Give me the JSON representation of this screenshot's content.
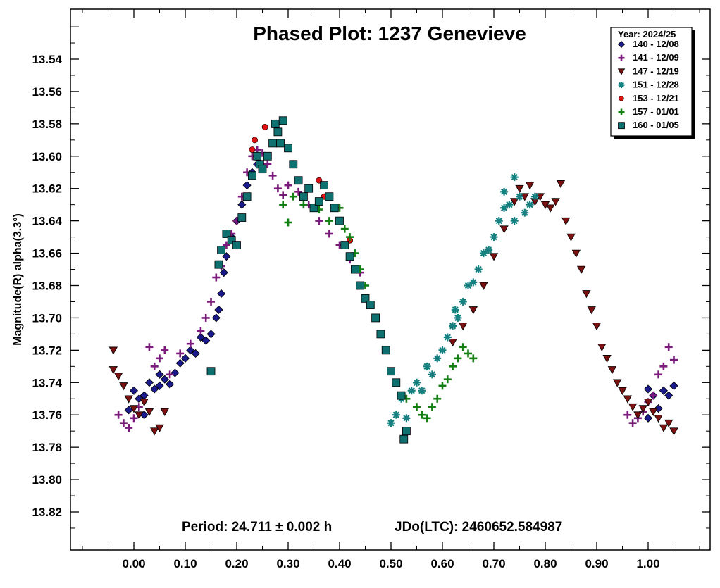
{
  "chart_data": {
    "type": "scatter",
    "title": "Phased Plot: 1237 Genevieve",
    "xlabel": "",
    "ylabel": "Magnitude(R) alpha(3.3°)",
    "xlim": [
      -0.12,
      1.12
    ],
    "ylim": [
      13.84,
      13.52
    ],
    "y_inverted": true,
    "grid": false,
    "legend_position": "top-right",
    "x_ticks": [
      0.0,
      0.1,
      0.2,
      0.3,
      0.4,
      0.5,
      0.6,
      0.7,
      0.8,
      0.9,
      1.0
    ],
    "x_tick_labels": [
      "0.00",
      "0.10",
      "0.20",
      "0.30",
      "0.40",
      "0.50",
      "0.60",
      "0.70",
      "0.80",
      "0.90",
      "1.00"
    ],
    "y_ticks": [
      13.54,
      13.56,
      13.58,
      13.6,
      13.62,
      13.64,
      13.66,
      13.68,
      13.7,
      13.72,
      13.74,
      13.76,
      13.78,
      13.8,
      13.82
    ],
    "y_tick_labels": [
      "13.54",
      "13.56",
      "13.58",
      "13.60",
      "13.62",
      "13.64",
      "13.66",
      "13.68",
      "13.70",
      "13.72",
      "13.74",
      "13.76",
      "13.78",
      "13.80",
      "13.82"
    ],
    "legend_title": "Year: 2024/25",
    "annotations": {
      "period": "Period: 24.711 ± 0.002 h",
      "epoch": "JDo(LTC): 2460652.584987"
    },
    "series": [
      {
        "name": "140 - 12/08",
        "marker": "diamond",
        "color": "#1a1a8c",
        "points": [
          [
            -0.01,
            13.757
          ],
          [
            0.0,
            13.745
          ],
          [
            0.01,
            13.75
          ],
          [
            0.02,
            13.76
          ],
          [
            0.02,
            13.748
          ],
          [
            0.03,
            13.74
          ],
          [
            0.04,
            13.744
          ],
          [
            0.05,
            13.735
          ],
          [
            0.05,
            13.742
          ],
          [
            0.06,
            13.738
          ],
          [
            0.07,
            13.741
          ],
          [
            0.08,
            13.734
          ],
          [
            0.09,
            13.728
          ],
          [
            0.1,
            13.725
          ],
          [
            0.11,
            13.72
          ],
          [
            0.12,
            13.722
          ],
          [
            0.13,
            13.712
          ],
          [
            0.14,
            13.714
          ],
          [
            0.15,
            13.71
          ],
          [
            0.16,
            13.7
          ],
          [
            0.165,
            13.695
          ],
          [
            0.17,
            13.685
          ],
          [
            0.175,
            13.672
          ],
          [
            0.18,
            13.662
          ],
          [
            0.19,
            13.65
          ],
          [
            0.2,
            13.64
          ],
          [
            0.21,
            13.63
          ],
          [
            0.22,
            13.618
          ],
          [
            0.23,
            13.61
          ],
          [
            0.24,
            13.605
          ],
          [
            1.0,
            13.744
          ],
          [
            1.01,
            13.748
          ],
          [
            1.02,
            13.756
          ],
          [
            1.03,
            13.745
          ],
          [
            1.04,
            13.748
          ],
          [
            1.05,
            13.742
          ],
          [
            1.0,
            13.762
          ]
        ]
      },
      {
        "name": "141 - 12/09",
        "marker": "plus",
        "color": "#7a1a7a",
        "points": [
          [
            -0.03,
            13.76
          ],
          [
            -0.02,
            13.765
          ],
          [
            -0.01,
            13.768
          ],
          [
            0.0,
            13.762
          ],
          [
            0.01,
            13.755
          ],
          [
            0.03,
            13.718
          ],
          [
            0.04,
            13.73
          ],
          [
            0.05,
            13.725
          ],
          [
            0.06,
            13.72
          ],
          [
            0.07,
            13.735
          ],
          [
            0.09,
            13.722
          ],
          [
            0.11,
            13.716
          ],
          [
            0.13,
            13.708
          ],
          [
            0.14,
            13.7
          ],
          [
            0.15,
            13.69
          ],
          [
            0.16,
            13.675
          ],
          [
            0.17,
            13.668
          ],
          [
            0.18,
            13.655
          ],
          [
            0.19,
            13.648
          ],
          [
            0.2,
            13.64
          ],
          [
            0.21,
            13.625
          ],
          [
            0.22,
            13.61
          ],
          [
            0.23,
            13.6
          ],
          [
            0.24,
            13.596
          ],
          [
            0.25,
            13.598
          ],
          [
            0.26,
            13.605
          ],
          [
            0.27,
            13.612
          ],
          [
            0.28,
            13.62
          ],
          [
            0.29,
            13.624
          ],
          [
            0.3,
            13.618
          ],
          [
            0.32,
            13.622
          ],
          [
            0.34,
            13.63
          ],
          [
            0.36,
            13.64
          ],
          [
            0.38,
            13.648
          ],
          [
            0.4,
            13.655
          ],
          [
            0.42,
            13.664
          ],
          [
            0.44,
            13.672
          ],
          [
            0.96,
            13.76
          ],
          [
            0.97,
            13.765
          ],
          [
            0.98,
            13.762
          ],
          [
            0.99,
            13.758
          ],
          [
            1.0,
            13.752
          ],
          [
            1.01,
            13.748
          ],
          [
            1.02,
            13.735
          ],
          [
            1.03,
            13.73
          ],
          [
            1.04,
            13.718
          ],
          [
            1.05,
            13.726
          ]
        ]
      },
      {
        "name": "147 - 12/19",
        "marker": "triangle-down",
        "color": "#7a1010",
        "points": [
          [
            -0.04,
            13.72
          ],
          [
            -0.04,
            13.732
          ],
          [
            -0.03,
            13.736
          ],
          [
            -0.02,
            13.742
          ],
          [
            -0.01,
            13.75
          ],
          [
            0.0,
            13.756
          ],
          [
            0.01,
            13.76
          ],
          [
            0.02,
            13.752
          ],
          [
            0.03,
            13.758
          ],
          [
            0.04,
            13.77
          ],
          [
            0.05,
            13.768
          ],
          [
            0.06,
            13.758
          ],
          [
            0.62,
            13.715
          ],
          [
            0.64,
            13.705
          ],
          [
            0.66,
            13.695
          ],
          [
            0.68,
            13.68
          ],
          [
            0.7,
            13.662
          ],
          [
            0.72,
            13.645
          ],
          [
            0.74,
            13.628
          ],
          [
            0.75,
            13.62
          ],
          [
            0.76,
            13.625
          ],
          [
            0.77,
            13.618
          ],
          [
            0.78,
            13.628
          ],
          [
            0.79,
            13.625
          ],
          [
            0.8,
            13.63
          ],
          [
            0.81,
            13.632
          ],
          [
            0.82,
            13.628
          ],
          [
            0.83,
            13.617
          ],
          [
            0.84,
            13.64
          ],
          [
            0.85,
            13.65
          ],
          [
            0.86,
            13.66
          ],
          [
            0.87,
            13.67
          ],
          [
            0.88,
            13.685
          ],
          [
            0.89,
            13.695
          ],
          [
            0.9,
            13.705
          ],
          [
            0.91,
            13.718
          ],
          [
            0.92,
            13.725
          ],
          [
            0.93,
            13.732
          ],
          [
            0.94,
            13.74
          ],
          [
            0.95,
            13.745
          ],
          [
            0.96,
            13.75
          ],
          [
            0.97,
            13.755
          ],
          [
            0.98,
            13.76
          ],
          [
            0.99,
            13.756
          ],
          [
            1.0,
            13.752
          ],
          [
            1.01,
            13.758
          ],
          [
            1.02,
            13.762
          ],
          [
            1.03,
            13.768
          ],
          [
            1.04,
            13.765
          ],
          [
            1.05,
            13.77
          ]
        ]
      },
      {
        "name": "151 - 12/28",
        "marker": "asterisk",
        "color": "#158080",
        "points": [
          [
            0.5,
            13.765
          ],
          [
            0.51,
            13.76
          ],
          [
            0.52,
            13.75
          ],
          [
            0.53,
            13.762
          ],
          [
            0.54,
            13.745
          ],
          [
            0.55,
            13.74
          ],
          [
            0.56,
            13.745
          ],
          [
            0.57,
            13.73
          ],
          [
            0.58,
            13.735
          ],
          [
            0.59,
            13.725
          ],
          [
            0.6,
            13.72
          ],
          [
            0.61,
            13.712
          ],
          [
            0.62,
            13.705
          ],
          [
            0.625,
            13.695
          ],
          [
            0.63,
            13.7
          ],
          [
            0.64,
            13.69
          ],
          [
            0.65,
            13.68
          ],
          [
            0.66,
            13.678
          ],
          [
            0.67,
            13.67
          ],
          [
            0.68,
            13.66
          ],
          [
            0.69,
            13.658
          ],
          [
            0.7,
            13.65
          ],
          [
            0.71,
            13.64
          ],
          [
            0.72,
            13.632
          ],
          [
            0.72,
            13.622
          ],
          [
            0.73,
            13.63
          ],
          [
            0.74,
            13.64
          ],
          [
            0.74,
            13.613
          ],
          [
            0.75,
            13.625
          ],
          [
            0.76,
            13.635
          ],
          [
            0.77,
            13.63
          ],
          [
            0.78,
            13.625
          ]
        ]
      },
      {
        "name": "153 - 12/21",
        "marker": "circle",
        "color": "#dd1111",
        "points": [
          [
            0.23,
            13.596
          ],
          [
            0.235,
            13.59
          ],
          [
            0.255,
            13.582
          ],
          [
            0.36,
            13.615
          ],
          [
            0.37,
            13.625
          ],
          [
            0.42,
            13.652
          ]
        ]
      },
      {
        "name": "157 - 01/01",
        "marker": "plus",
        "color": "#128012",
        "points": [
          [
            0.29,
            13.63
          ],
          [
            0.3,
            13.641
          ],
          [
            0.31,
            13.625
          ],
          [
            0.33,
            13.63
          ],
          [
            0.36,
            13.633
          ],
          [
            0.38,
            13.64
          ],
          [
            0.4,
            13.632
          ],
          [
            0.41,
            13.645
          ],
          [
            0.42,
            13.65
          ],
          [
            0.43,
            13.66
          ],
          [
            0.44,
            13.67
          ],
          [
            0.45,
            13.68
          ],
          [
            0.53,
            13.75
          ],
          [
            0.55,
            13.755
          ],
          [
            0.56,
            13.76
          ],
          [
            0.57,
            13.762
          ],
          [
            0.58,
            13.755
          ],
          [
            0.59,
            13.75
          ],
          [
            0.6,
            13.742
          ],
          [
            0.61,
            13.738
          ],
          [
            0.62,
            13.73
          ],
          [
            0.63,
            13.725
          ],
          [
            0.64,
            13.718
          ],
          [
            0.65,
            13.722
          ],
          [
            0.66,
            13.725
          ]
        ]
      },
      {
        "name": "160 - 01/05",
        "marker": "square",
        "color": "#0f7070",
        "points": [
          [
            0.15,
            13.733
          ],
          [
            0.165,
            13.667
          ],
          [
            0.17,
            13.658
          ],
          [
            0.18,
            13.648
          ],
          [
            0.19,
            13.652
          ],
          [
            0.2,
            13.655
          ],
          [
            0.21,
            13.638
          ],
          [
            0.22,
            13.625
          ],
          [
            0.23,
            13.612
          ],
          [
            0.24,
            13.6
          ],
          [
            0.245,
            13.605
          ],
          [
            0.25,
            13.608
          ],
          [
            0.26,
            13.6
          ],
          [
            0.27,
            13.592
          ],
          [
            0.275,
            13.58
          ],
          [
            0.28,
            13.585
          ],
          [
            0.285,
            13.592
          ],
          [
            0.29,
            13.578
          ],
          [
            0.3,
            13.595
          ],
          [
            0.31,
            13.605
          ],
          [
            0.32,
            13.615
          ],
          [
            0.33,
            13.625
          ],
          [
            0.34,
            13.62
          ],
          [
            0.35,
            13.632
          ],
          [
            0.36,
            13.628
          ],
          [
            0.37,
            13.618
          ],
          [
            0.38,
            13.625
          ],
          [
            0.39,
            13.632
          ],
          [
            0.4,
            13.64
          ],
          [
            0.41,
            13.655
          ],
          [
            0.42,
            13.662
          ],
          [
            0.43,
            13.67
          ],
          [
            0.44,
            13.68
          ],
          [
            0.45,
            13.688
          ],
          [
            0.46,
            13.692
          ],
          [
            0.47,
            13.7
          ],
          [
            0.48,
            13.71
          ],
          [
            0.49,
            13.72
          ],
          [
            0.5,
            13.733
          ],
          [
            0.51,
            13.74
          ],
          [
            0.52,
            13.748
          ],
          [
            0.525,
            13.775
          ],
          [
            0.53,
            13.77
          ]
        ]
      }
    ]
  }
}
